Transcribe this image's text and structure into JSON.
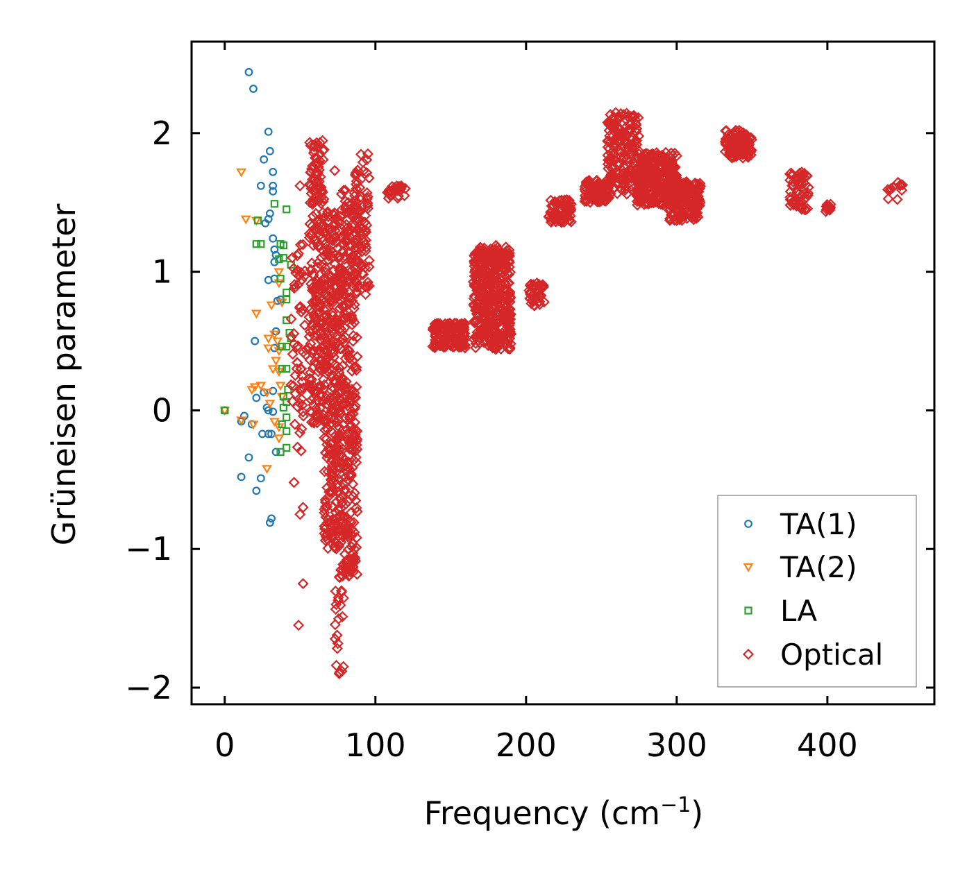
{
  "chart_data": {
    "type": "scatter",
    "title": "",
    "xlabel": "Frequency (cm",
    "xlabel_sup": "−1",
    "xlabel_tail": ")",
    "ylabel": "Grüneisen parameter",
    "xlim": [
      -22,
      471
    ],
    "ylim": [
      -2.12,
      2.66
    ],
    "xticks": [
      0,
      100,
      200,
      300,
      400
    ],
    "xtick_labels": [
      "0",
      "100",
      "200",
      "300",
      "400"
    ],
    "yticks": [
      -2,
      -1,
      0,
      1,
      2
    ],
    "ytick_labels": [
      "−2",
      "−1",
      "0",
      "1",
      "2"
    ],
    "legend_position": "lower-right",
    "series": [
      {
        "name": "TA(1)",
        "marker": "circle",
        "color": "#1f77b4",
        "points": [
          [
            0,
            0
          ],
          [
            16,
            2.44
          ],
          [
            19,
            2.32
          ],
          [
            29,
            2.01
          ],
          [
            30,
            1.87
          ],
          [
            26,
            1.81
          ],
          [
            32,
            1.72
          ],
          [
            24,
            1.62
          ],
          [
            32,
            1.62
          ],
          [
            32,
            1.58
          ],
          [
            30,
            1.42
          ],
          [
            29,
            1.38
          ],
          [
            27,
            1.35
          ],
          [
            32,
            1.24
          ],
          [
            33,
            1.16
          ],
          [
            34,
            1.12
          ],
          [
            33,
            1.07
          ],
          [
            29,
            0.94
          ],
          [
            33,
            0.95
          ],
          [
            35,
            0.79
          ],
          [
            37,
            0.8
          ],
          [
            34,
            0.57
          ],
          [
            20,
            0.5
          ],
          [
            33,
            0.45
          ],
          [
            21,
            0.09
          ],
          [
            26,
            0.13
          ],
          [
            32,
            0.14
          ],
          [
            28,
            0.02
          ],
          [
            29,
            0
          ],
          [
            32,
            -0.01
          ],
          [
            13,
            -0.04
          ],
          [
            11,
            -0.08
          ],
          [
            18,
            -0.1
          ],
          [
            29,
            -0.17
          ],
          [
            25,
            -0.17
          ],
          [
            31,
            -0.17
          ],
          [
            34,
            -0.3
          ],
          [
            16,
            -0.34
          ],
          [
            11,
            -0.48
          ],
          [
            24,
            -0.49
          ],
          [
            21,
            -0.58
          ],
          [
            31,
            -0.78
          ],
          [
            30,
            -0.81
          ]
        ]
      },
      {
        "name": "TA(2)",
        "marker": "triangle-down",
        "color": "#ff7f0e",
        "points": [
          [
            0,
            0
          ],
          [
            11,
            1.72
          ],
          [
            14,
            1.38
          ],
          [
            21,
            1.37
          ],
          [
            36,
            1.0
          ],
          [
            36,
            0.92
          ],
          [
            38,
            0.78
          ],
          [
            31,
            0.76
          ],
          [
            21,
            0.7
          ],
          [
            33,
            0.55
          ],
          [
            29,
            0.52
          ],
          [
            35,
            0.5
          ],
          [
            29,
            0.45
          ],
          [
            36,
            0.43
          ],
          [
            34,
            0.36
          ],
          [
            32,
            0.3
          ],
          [
            36,
            0.28
          ],
          [
            20,
            0.17
          ],
          [
            24,
            0.18
          ],
          [
            37,
            0.18
          ],
          [
            18,
            0.15
          ],
          [
            28,
            0.13
          ],
          [
            38,
            0.1
          ],
          [
            30,
            0.05
          ],
          [
            11,
            -0.07
          ],
          [
            19,
            -0.1
          ],
          [
            33,
            -0.08
          ],
          [
            36,
            -0.12
          ],
          [
            36,
            -0.2
          ],
          [
            28,
            -0.42
          ]
        ]
      },
      {
        "name": "LA",
        "marker": "square",
        "color": "#2ca02c",
        "points": [
          [
            0,
            0
          ],
          [
            33,
            1.49
          ],
          [
            41,
            1.45
          ],
          [
            22,
            1.37
          ],
          [
            24,
            1.2
          ],
          [
            21,
            1.2
          ],
          [
            37,
            1.2
          ],
          [
            39,
            1.19
          ],
          [
            39,
            1.1
          ],
          [
            36,
            1.09
          ],
          [
            44,
            1.05
          ],
          [
            41,
            0.85
          ],
          [
            37,
            0.95
          ],
          [
            41,
            0.8
          ],
          [
            41,
            0.65
          ],
          [
            43,
            0.56
          ],
          [
            44,
            0.52
          ],
          [
            41,
            0.46
          ],
          [
            38,
            0.46
          ],
          [
            41,
            0.3
          ],
          [
            38,
            0.3
          ],
          [
            42,
            0.15
          ],
          [
            39,
            0.1
          ],
          [
            41,
            0.06
          ],
          [
            39,
            0.02
          ],
          [
            41,
            -0.05
          ],
          [
            38,
            -0.1
          ],
          [
            41,
            -0.15
          ],
          [
            41,
            -0.27
          ],
          [
            37,
            -0.3
          ]
        ]
      },
      {
        "name": "Optical",
        "marker": "diamond",
        "color": "#d62728",
        "clusters": [
          {
            "x": [
              44,
              54
            ],
            "y": [
              -0.3,
              1.2
            ],
            "n": 60
          },
          {
            "x": [
              56,
              66
            ],
            "y": [
              -0.1,
              1.95
            ],
            "n": 240
          },
          {
            "x": [
              66,
              77
            ],
            "y": [
              -1.0,
              1.5
            ],
            "n": 320
          },
          {
            "x": [
              77,
              88
            ],
            "y": [
              -1.2,
              1.6
            ],
            "n": 320
          },
          {
            "x": [
              86,
              96
            ],
            "y": [
              0.8,
              1.85
            ],
            "n": 80
          },
          {
            "x": [
              73,
              79
            ],
            "y": [
              -1.9,
              -1.2
            ],
            "n": 22
          },
          {
            "x": [
              108,
              120
            ],
            "y": [
              1.53,
              1.62
            ],
            "n": 28
          },
          {
            "x": [
              138,
              160
            ],
            "y": [
              0.45,
              0.63
            ],
            "n": 130
          },
          {
            "x": [
              165,
              190
            ],
            "y": [
              0.44,
              1.18
            ],
            "n": 420
          },
          {
            "x": [
              202,
              212
            ],
            "y": [
              0.75,
              0.92
            ],
            "n": 40
          },
          {
            "x": [
              215,
              230
            ],
            "y": [
              1.35,
              1.52
            ],
            "n": 70
          },
          {
            "x": [
              238,
              255
            ],
            "y": [
              1.5,
              1.66
            ],
            "n": 80
          },
          {
            "x": [
              254,
              275
            ],
            "y": [
              1.56,
              2.15
            ],
            "n": 190
          },
          {
            "x": [
              273,
              300
            ],
            "y": [
              1.48,
              1.86
            ],
            "n": 300
          },
          {
            "x": [
              295,
              316
            ],
            "y": [
              1.37,
              1.65
            ],
            "n": 160
          },
          {
            "x": [
              332,
              350
            ],
            "y": [
              1.82,
              2.02
            ],
            "n": 100
          },
          {
            "x": [
              375,
              388
            ],
            "y": [
              1.44,
              1.72
            ],
            "n": 60
          },
          {
            "x": [
              397,
              403
            ],
            "y": [
              1.43,
              1.49
            ],
            "n": 10
          },
          {
            "x": [
              440,
              450
            ],
            "y": [
              1.48,
              1.66
            ],
            "n": 12
          }
        ],
        "points": [
          [
            52,
            -1.25
          ],
          [
            49,
            -1.55
          ],
          [
            76,
            -1.9
          ],
          [
            95,
            1.85
          ],
          [
            73,
            1.73
          ],
          [
            50,
            1.62
          ],
          [
            180,
            1.19
          ],
          [
            300,
            1.37
          ],
          [
            50,
            -0.75
          ],
          [
            52,
            -0.7
          ],
          [
            46,
            -0.52
          ]
        ]
      }
    ]
  },
  "colors": {
    "TA1": "#1f77b4",
    "TA2": "#ff7f0e",
    "LA": "#2ca02c",
    "Optical": "#d62728"
  }
}
